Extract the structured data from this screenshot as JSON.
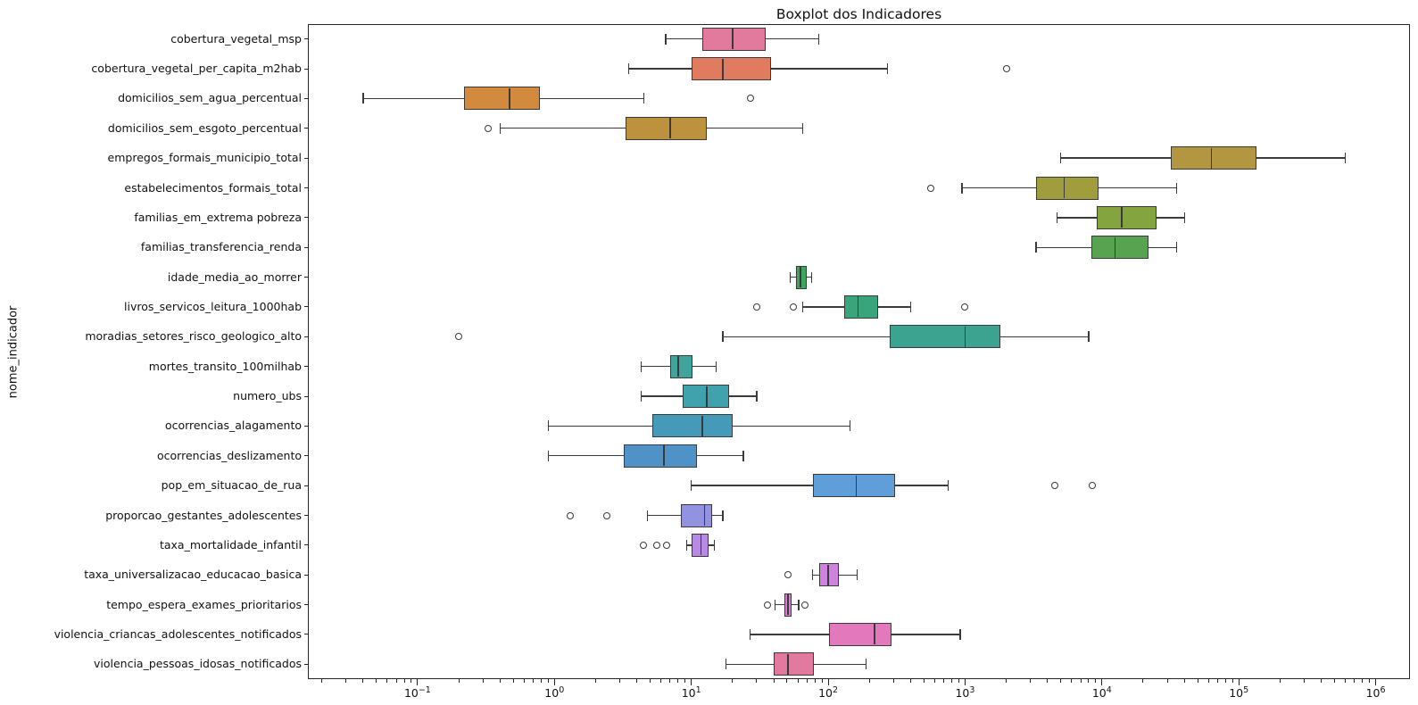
{
  "title": "Boxplot dos Indicadores",
  "y_axis_label": "nome_indicador",
  "chart_data": {
    "type": "boxplot",
    "orientation": "horizontal",
    "xscale": "log",
    "xlim": [
      0.0158,
      1780000
    ],
    "grid": false,
    "frame": true,
    "x_tick_base": "10",
    "x_ticks": [
      {
        "value": 0.1,
        "exp": "−1"
      },
      {
        "value": 1,
        "exp": "0"
      },
      {
        "value": 10,
        "exp": "1"
      },
      {
        "value": 100,
        "exp": "2"
      },
      {
        "value": 1000,
        "exp": "3"
      },
      {
        "value": 10000,
        "exp": "4"
      },
      {
        "value": 100000,
        "exp": "5"
      },
      {
        "value": 1000000,
        "exp": "6"
      }
    ],
    "style": {
      "edge_color": "#3a3a3a",
      "flier_edge_color": "#3a3a3a"
    },
    "boxes": [
      {
        "name": "cobertura_vegetal_msp",
        "color": "#e17a9d",
        "whislo": 6.5,
        "q1": 12,
        "med": 20,
        "q3": 35,
        "whishi": 85,
        "outliers": []
      },
      {
        "name": "cobertura_vegetal_per_capita_m2hab",
        "color": "#e07b5f",
        "whislo": 3.5,
        "q1": 10,
        "med": 17,
        "q3": 38,
        "whishi": 270,
        "outliers": [
          2000
        ]
      },
      {
        "name": "domicilios_sem_agua_percentual",
        "color": "#d28b3e",
        "whislo": 0.04,
        "q1": 0.22,
        "med": 0.47,
        "q3": 0.78,
        "whishi": 4.5,
        "outliers": [
          27
        ]
      },
      {
        "name": "domicilios_sem_esgoto_percentual",
        "color": "#bd923f",
        "whislo": 0.4,
        "q1": 3.3,
        "med": 7,
        "q3": 13,
        "whishi": 65,
        "outliers": [
          0.33
        ]
      },
      {
        "name": "empregos_formais_municipio_total",
        "color": "#b29640",
        "whislo": 5000,
        "q1": 32000,
        "med": 63000,
        "q3": 135000,
        "whishi": 600000,
        "outliers": []
      },
      {
        "name": "estabelecimentos_formais_total",
        "color": "#9f9d3c",
        "whislo": 950,
        "q1": 3300,
        "med": 5300,
        "q3": 9500,
        "whishi": 35000,
        "outliers": [
          560
        ]
      },
      {
        "name": "familias_em_extrema pobreza",
        "color": "#83a43e",
        "whislo": 4700,
        "q1": 9200,
        "med": 14000,
        "q3": 25000,
        "whishi": 40000,
        "outliers": []
      },
      {
        "name": "familias_transferencia_renda",
        "color": "#58a350",
        "whislo": 3300,
        "q1": 8400,
        "med": 12500,
        "q3": 22000,
        "whishi": 35000,
        "outliers": []
      },
      {
        "name": "idade_media_ao_morrer",
        "color": "#3ea65f",
        "whislo": 53,
        "q1": 58,
        "med": 63,
        "q3": 70,
        "whishi": 76,
        "outliers": []
      },
      {
        "name": "livros_servicos_leitura_1000hab",
        "color": "#3aa57d",
        "whislo": 65,
        "q1": 130,
        "med": 165,
        "q3": 230,
        "whishi": 400,
        "outliers": [
          30,
          56,
          1000
        ]
      },
      {
        "name": "moradias_setores_risco_geologico_alto",
        "color": "#3ca391",
        "whislo": 17,
        "q1": 280,
        "med": 1000,
        "q3": 1800,
        "whishi": 8000,
        "outliers": [
          0.2
        ]
      },
      {
        "name": "mortes_transito_100milhab",
        "color": "#41a49c",
        "whislo": 4.3,
        "q1": 7,
        "med": 8,
        "q3": 10.2,
        "whishi": 15.2,
        "outliers": []
      },
      {
        "name": "numero_ubs",
        "color": "#3fa2ad",
        "whislo": 4.3,
        "q1": 8.7,
        "med": 13,
        "q3": 19,
        "whishi": 30,
        "outliers": []
      },
      {
        "name": "ocorrencias_alagamento",
        "color": "#459ab9",
        "whislo": 0.9,
        "q1": 5.2,
        "med": 12,
        "q3": 20,
        "whishi": 145,
        "outliers": []
      },
      {
        "name": "ocorrencias_deslizamento",
        "color": "#4e92c8",
        "whislo": 0.9,
        "q1": 3.2,
        "med": 6.3,
        "q3": 11,
        "whishi": 24,
        "outliers": []
      },
      {
        "name": "pop_em_situacao_de_rua",
        "color": "#5f9ed8",
        "whislo": 10,
        "q1": 77,
        "med": 160,
        "q3": 310,
        "whishi": 750,
        "outliers": [
          4500,
          8500
        ]
      },
      {
        "name": "proporcao_gestantes_adolescentes",
        "color": "#9292e0",
        "whislo": 4.8,
        "q1": 8.4,
        "med": 12.5,
        "q3": 14.2,
        "whishi": 17,
        "outliers": [
          1.3,
          2.4
        ]
      },
      {
        "name": "taxa_mortalidade_infantil",
        "color": "#b98ae1",
        "whislo": 9.3,
        "q1": 10,
        "med": 11.8,
        "q3": 13.4,
        "whishi": 14.8,
        "outliers": [
          4.5,
          5.6,
          6.6
        ]
      },
      {
        "name": "taxa_universalizacao_educacao_basica",
        "color": "#cd83df",
        "whislo": 77,
        "q1": 86,
        "med": 100,
        "q3": 119,
        "whishi": 163,
        "outliers": [
          51
        ]
      },
      {
        "name": "tempo_espera_exames_prioritarios",
        "color": "#dc7bd2",
        "whislo": 41,
        "q1": 48,
        "med": 51,
        "q3": 54,
        "whishi": 61,
        "outliers": [
          36,
          68
        ]
      },
      {
        "name": "violencia_criancas_adolescentes_notificados",
        "color": "#e378bd",
        "whislo": 27,
        "q1": 101,
        "med": 218,
        "q3": 289,
        "whishi": 920,
        "outliers": []
      },
      {
        "name": "violencia_pessoas_idosas_notificados",
        "color": "#e27a9f",
        "whislo": 18,
        "q1": 40,
        "med": 51,
        "q3": 78,
        "whishi": 190,
        "outliers": []
      }
    ]
  }
}
